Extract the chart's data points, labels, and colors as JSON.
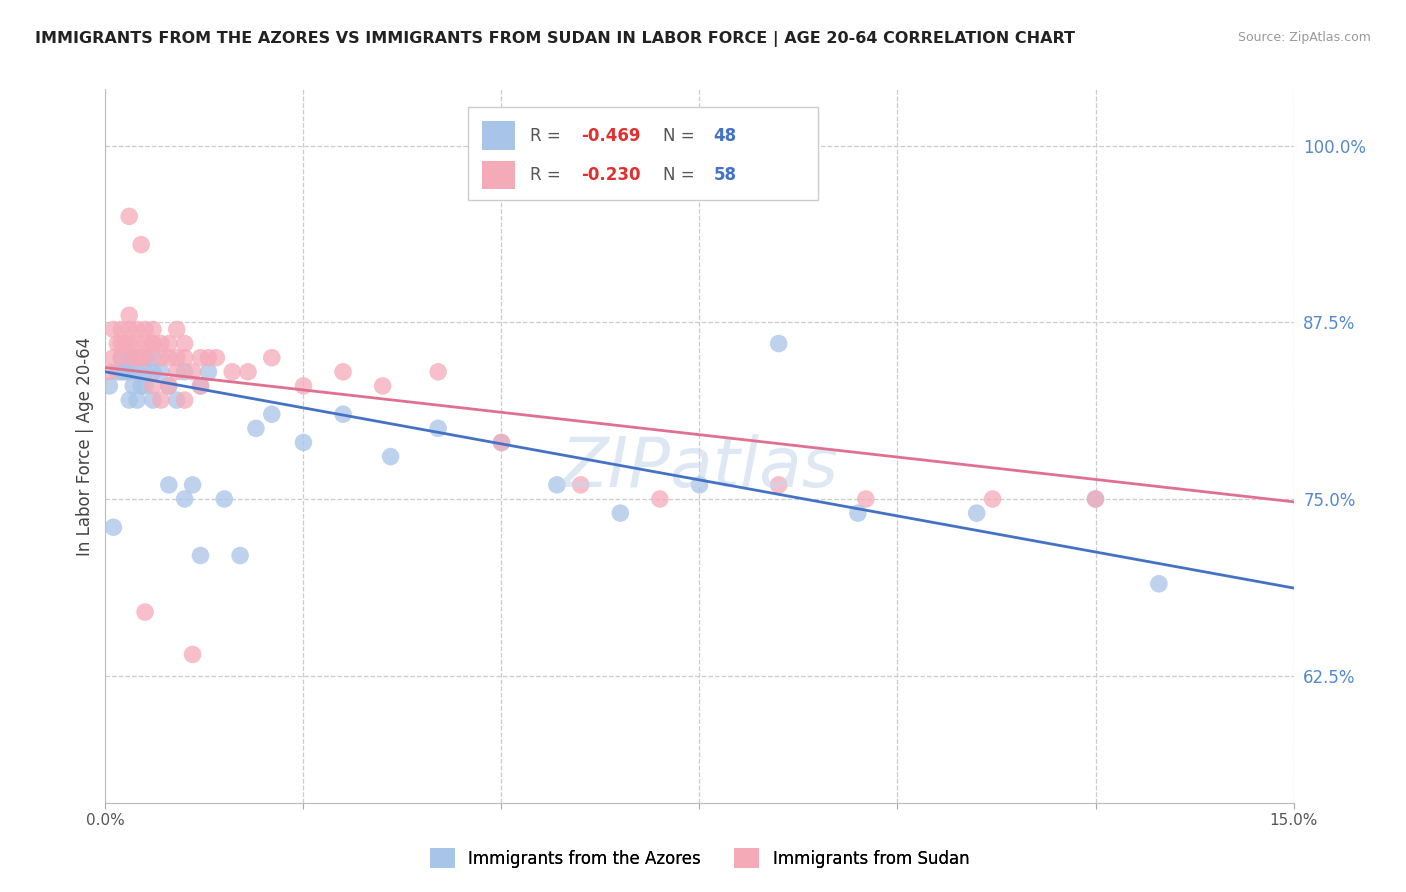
{
  "title": "IMMIGRANTS FROM THE AZORES VS IMMIGRANTS FROM SUDAN IN LABOR FORCE | AGE 20-64 CORRELATION CHART",
  "source": "Source: ZipAtlas.com",
  "ylabel": "In Labor Force | Age 20-64",
  "xlim": [
    0.0,
    0.15
  ],
  "ylim": [
    0.535,
    1.04
  ],
  "x_ticks": [
    0.0,
    0.025,
    0.05,
    0.075,
    0.1,
    0.125,
    0.15
  ],
  "y_ticks_right": [
    0.625,
    0.75,
    0.875,
    1.0
  ],
  "y_tick_labels_right": [
    "62.5%",
    "75.0%",
    "87.5%",
    "100.0%"
  ],
  "azores_color": "#a8c4e8",
  "sudan_color": "#f5aab8",
  "azores_line_color": "#4472c4",
  "sudan_line_color": "#e07090",
  "legend_R_azores": "-0.469",
  "legend_N_azores": "48",
  "legend_R_sudan": "-0.230",
  "legend_N_sudan": "58",
  "legend_label_azores": "Immigrants from the Azores",
  "legend_label_sudan": "Immigrants from Sudan",
  "title_color": "#222222",
  "source_color": "#999999",
  "axis_label_color": "#444444",
  "right_tick_color": "#5588cc",
  "grid_color": "#cccccc",
  "watermark_text": "ZIPatlas",
  "watermark_color": "#c8d8ee",
  "azores_x": [
    0.0005,
    0.001,
    0.0015,
    0.002,
    0.002,
    0.0025,
    0.003,
    0.003,
    0.003,
    0.0035,
    0.004,
    0.004,
    0.004,
    0.004,
    0.0045,
    0.005,
    0.005,
    0.005,
    0.006,
    0.006,
    0.006,
    0.007,
    0.008,
    0.009,
    0.01,
    0.011,
    0.012,
    0.013,
    0.015,
    0.017,
    0.019,
    0.021,
    0.025,
    0.03,
    0.036,
    0.042,
    0.05,
    0.057,
    0.065,
    0.075,
    0.085,
    0.095,
    0.11,
    0.125,
    0.133,
    0.008,
    0.01,
    0.012
  ],
  "azores_y": [
    0.83,
    0.73,
    0.84,
    0.84,
    0.85,
    0.84,
    0.84,
    0.85,
    0.82,
    0.83,
    0.85,
    0.85,
    0.84,
    0.82,
    0.83,
    0.84,
    0.83,
    0.85,
    0.84,
    0.82,
    0.85,
    0.84,
    0.83,
    0.82,
    0.84,
    0.76,
    0.83,
    0.84,
    0.75,
    0.71,
    0.8,
    0.81,
    0.79,
    0.81,
    0.78,
    0.8,
    0.79,
    0.76,
    0.74,
    0.76,
    0.86,
    0.74,
    0.74,
    0.75,
    0.69,
    0.76,
    0.75,
    0.71
  ],
  "sudan_x": [
    0.0005,
    0.001,
    0.001,
    0.0015,
    0.002,
    0.002,
    0.002,
    0.0025,
    0.003,
    0.003,
    0.003,
    0.0035,
    0.004,
    0.004,
    0.004,
    0.0045,
    0.005,
    0.005,
    0.005,
    0.006,
    0.006,
    0.006,
    0.007,
    0.007,
    0.008,
    0.008,
    0.009,
    0.009,
    0.01,
    0.01,
    0.011,
    0.012,
    0.013,
    0.014,
    0.016,
    0.018,
    0.021,
    0.025,
    0.03,
    0.035,
    0.042,
    0.05,
    0.06,
    0.07,
    0.085,
    0.096,
    0.112,
    0.125,
    0.003,
    0.0045,
    0.005,
    0.006,
    0.007,
    0.008,
    0.009,
    0.01,
    0.011,
    0.012
  ],
  "sudan_y": [
    0.84,
    0.87,
    0.85,
    0.86,
    0.86,
    0.85,
    0.87,
    0.86,
    0.86,
    0.87,
    0.88,
    0.85,
    0.86,
    0.85,
    0.87,
    0.85,
    0.87,
    0.86,
    0.85,
    0.86,
    0.87,
    0.86,
    0.86,
    0.85,
    0.85,
    0.86,
    0.85,
    0.87,
    0.85,
    0.86,
    0.84,
    0.85,
    0.85,
    0.85,
    0.84,
    0.84,
    0.85,
    0.83,
    0.84,
    0.83,
    0.84,
    0.79,
    0.76,
    0.75,
    0.76,
    0.75,
    0.75,
    0.75,
    0.95,
    0.93,
    0.67,
    0.83,
    0.82,
    0.83,
    0.84,
    0.82,
    0.64,
    0.83
  ]
}
